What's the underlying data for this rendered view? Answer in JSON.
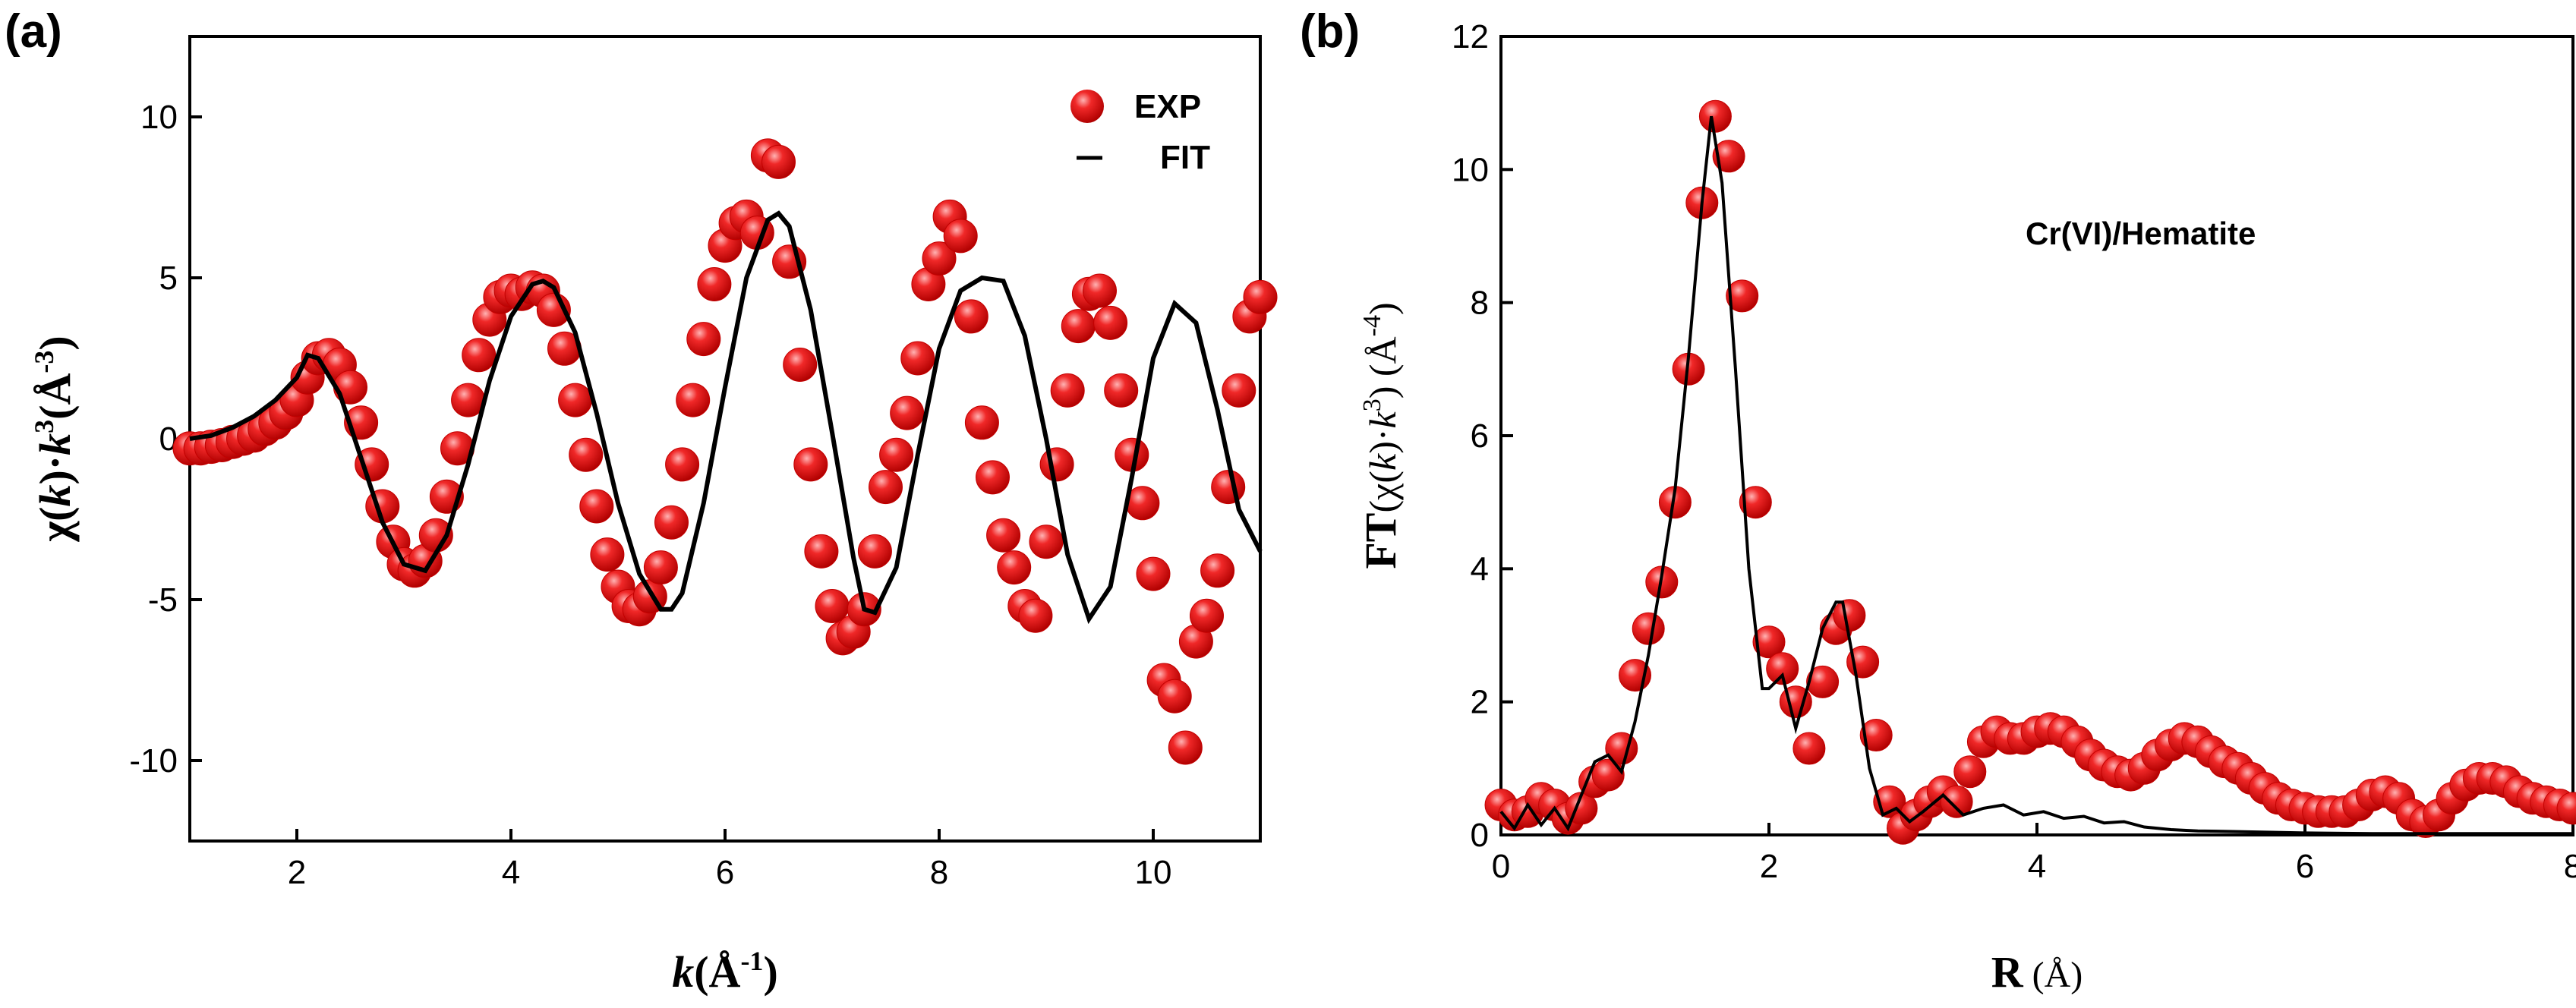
{
  "chart_data": [
    {
      "panel": "(a)",
      "type": "scatter",
      "xlabel_parts": [
        "k",
        "(Å",
        "-1",
        ")"
      ],
      "ylabel_parts": [
        "χ(",
        "k",
        ")·",
        "k",
        "3",
        "(Å",
        "-3",
        ")"
      ],
      "xlim": [
        1,
        11
      ],
      "ylim": [
        -12.5,
        12.5
      ],
      "xticks": [
        2,
        4,
        6,
        8,
        10
      ],
      "yticks": [
        -10,
        -5,
        0,
        5,
        10
      ],
      "legend": {
        "position": "top-right",
        "entries": [
          "EXP",
          "FIT"
        ]
      },
      "series": [
        {
          "name": "EXP",
          "kind": "markers",
          "color": "#e8141a",
          "x": [
            1.0,
            1.1,
            1.2,
            1.3,
            1.4,
            1.5,
            1.6,
            1.7,
            1.8,
            1.9,
            2.0,
            2.1,
            2.2,
            2.3,
            2.4,
            2.5,
            2.6,
            2.7,
            2.8,
            2.9,
            3.0,
            3.1,
            3.2,
            3.3,
            3.4,
            3.5,
            3.6,
            3.7,
            3.8,
            3.9,
            4.0,
            4.1,
            4.2,
            4.3,
            4.4,
            4.5,
            4.6,
            4.7,
            4.8,
            4.9,
            5.0,
            5.1,
            5.2,
            5.3,
            5.4,
            5.5,
            5.6,
            5.7,
            5.8,
            5.9,
            6.0,
            6.1,
            6.2,
            6.3,
            6.4,
            6.5,
            6.6,
            6.7,
            6.8,
            6.9,
            7.0,
            7.1,
            7.2,
            7.3,
            7.4,
            7.5,
            7.6,
            7.7,
            7.8,
            7.9,
            8.0,
            8.1,
            8.2,
            8.3,
            8.4,
            8.5,
            8.6,
            8.7,
            8.8,
            8.9,
            9.0,
            9.1,
            9.2,
            9.3,
            9.4,
            9.5,
            9.6,
            9.7,
            9.8,
            9.9,
            10.0,
            10.1,
            10.2,
            10.3,
            10.4,
            10.5,
            10.6,
            10.7,
            10.8,
            10.9,
            11.0
          ],
          "y": [
            -0.3,
            -0.3,
            -0.25,
            -0.2,
            -0.1,
            0.0,
            0.1,
            0.3,
            0.5,
            0.8,
            1.2,
            1.9,
            2.5,
            2.6,
            2.3,
            1.6,
            0.5,
            -0.8,
            -2.1,
            -3.2,
            -3.9,
            -4.1,
            -3.8,
            -3.0,
            -1.8,
            -0.3,
            1.2,
            2.6,
            3.7,
            4.4,
            4.6,
            4.5,
            4.7,
            4.6,
            4.0,
            2.8,
            1.2,
            -0.5,
            -2.1,
            -3.6,
            -4.6,
            -5.2,
            -5.3,
            -4.9,
            -4.0,
            -2.6,
            -0.8,
            1.2,
            3.1,
            4.8,
            6.0,
            6.7,
            6.9,
            6.4,
            8.8,
            8.6,
            5.5,
            2.3,
            -0.8,
            -3.5,
            -5.2,
            -6.2,
            -6.0,
            -5.3,
            -3.5,
            -1.5,
            -0.5,
            0.8,
            2.5,
            4.8,
            5.6,
            6.9,
            6.3,
            3.8,
            0.5,
            -1.2,
            -3.0,
            -4.0,
            -5.2,
            -5.5,
            -3.2,
            -0.8,
            1.5,
            3.5,
            4.5,
            4.6,
            3.6,
            1.5,
            -0.5,
            -2.0,
            -4.2,
            -7.5,
            -8.0,
            -9.6,
            -6.3,
            -5.5,
            -4.1,
            -1.5,
            1.5,
            3.8,
            4.4
          ]
        },
        {
          "name": "FIT",
          "kind": "line",
          "color": "#000000",
          "x": [
            1.0,
            1.2,
            1.4,
            1.6,
            1.8,
            2.0,
            2.1,
            2.2,
            2.4,
            2.6,
            2.8,
            3.0,
            3.2,
            3.4,
            3.6,
            3.8,
            4.0,
            4.2,
            4.3,
            4.4,
            4.6,
            4.8,
            5.0,
            5.2,
            5.4,
            5.5,
            5.6,
            5.8,
            6.0,
            6.2,
            6.4,
            6.5,
            6.6,
            6.8,
            7.0,
            7.2,
            7.3,
            7.4,
            7.6,
            7.8,
            8.0,
            8.2,
            8.4,
            8.6,
            8.8,
            9.0,
            9.2,
            9.4,
            9.6,
            9.8,
            10.0,
            10.2,
            10.4,
            10.6,
            10.8,
            11.0
          ],
          "y": [
            0.0,
            0.1,
            0.35,
            0.7,
            1.2,
            1.9,
            2.6,
            2.5,
            1.4,
            -0.6,
            -2.6,
            -3.9,
            -4.1,
            -3.0,
            -0.8,
            1.8,
            3.8,
            4.8,
            4.9,
            4.7,
            3.3,
            0.8,
            -2.0,
            -4.2,
            -5.3,
            -5.3,
            -4.8,
            -2.0,
            1.6,
            5.0,
            6.8,
            7.0,
            6.6,
            4.0,
            0.2,
            -3.7,
            -5.3,
            -5.4,
            -4.0,
            -0.5,
            2.8,
            4.6,
            5.0,
            4.9,
            3.2,
            0.0,
            -3.6,
            -5.6,
            -4.6,
            -1.2,
            2.5,
            4.2,
            3.6,
            0.9,
            -2.2,
            -3.5
          ]
        }
      ]
    },
    {
      "panel": "(b)",
      "type": "scatter",
      "title": "Cr(VI)/Hematite",
      "xlabel_parts": [
        "R",
        " (Å)"
      ],
      "ylabel_parts": [
        "FT",
        "(χ(",
        "k",
        ")·",
        "k",
        "3",
        ") (Å",
        "-4",
        ")"
      ],
      "xlim": [
        0,
        8
      ],
      "ylim": [
        0,
        12
      ],
      "xticks": [
        0,
        2,
        4,
        6,
        8
      ],
      "yticks": [
        0,
        2,
        4,
        6,
        8,
        10,
        12
      ],
      "series": [
        {
          "name": "EXP",
          "kind": "markers",
          "color": "#e8141a",
          "x": [
            0.0,
            0.1,
            0.2,
            0.3,
            0.4,
            0.5,
            0.6,
            0.7,
            0.8,
            0.9,
            1.0,
            1.1,
            1.2,
            1.3,
            1.4,
            1.5,
            1.6,
            1.7,
            1.8,
            1.9,
            2.0,
            2.1,
            2.2,
            2.3,
            2.4,
            2.5,
            2.6,
            2.7,
            2.8,
            2.9,
            3.0,
            3.1,
            3.2,
            3.3,
            3.4,
            3.5,
            3.6,
            3.7,
            3.8,
            3.9,
            4.0,
            4.1,
            4.2,
            4.3,
            4.4,
            4.5,
            4.6,
            4.7,
            4.8,
            4.9,
            5.0,
            5.1,
            5.2,
            5.3,
            5.4,
            5.5,
            5.6,
            5.7,
            5.8,
            5.9,
            6.0,
            6.1,
            6.2,
            6.3,
            6.4,
            6.5,
            6.6,
            6.7,
            6.8,
            6.9,
            7.0,
            7.1,
            7.2,
            7.3,
            7.4,
            7.5,
            7.6,
            7.7,
            7.8,
            7.9,
            8.0
          ],
          "y": [
            0.45,
            0.3,
            0.35,
            0.55,
            0.45,
            0.25,
            0.4,
            0.8,
            0.9,
            1.3,
            2.4,
            3.1,
            3.8,
            5.0,
            7.0,
            9.5,
            10.8,
            10.2,
            8.1,
            5.0,
            2.9,
            2.5,
            2.0,
            1.3,
            2.3,
            3.1,
            3.3,
            2.6,
            1.5,
            0.5,
            0.1,
            0.3,
            0.5,
            0.65,
            0.5,
            0.95,
            1.4,
            1.55,
            1.45,
            1.45,
            1.55,
            1.6,
            1.55,
            1.4,
            1.2,
            1.05,
            0.95,
            0.9,
            1.0,
            1.2,
            1.35,
            1.45,
            1.4,
            1.25,
            1.1,
            1.0,
            0.85,
            0.7,
            0.55,
            0.45,
            0.4,
            0.35,
            0.35,
            0.35,
            0.45,
            0.6,
            0.65,
            0.55,
            0.3,
            0.2,
            0.3,
            0.55,
            0.75,
            0.85,
            0.85,
            0.8,
            0.65,
            0.55,
            0.5,
            0.45,
            0.4
          ]
        },
        {
          "name": "FIT",
          "kind": "line",
          "color": "#000000",
          "x": [
            0.0,
            0.1,
            0.2,
            0.3,
            0.4,
            0.5,
            0.6,
            0.7,
            0.8,
            0.9,
            1.0,
            1.1,
            1.2,
            1.3,
            1.4,
            1.5,
            1.57,
            1.65,
            1.75,
            1.85,
            1.95,
            2.0,
            2.1,
            2.2,
            2.3,
            2.4,
            2.5,
            2.55,
            2.65,
            2.75,
            2.85,
            2.95,
            3.05,
            3.15,
            3.3,
            3.45,
            3.6,
            3.75,
            3.9,
            4.05,
            4.2,
            4.35,
            4.5,
            4.65,
            4.8,
            5.0,
            5.2,
            5.5,
            6.0,
            6.5,
            7.0,
            8.0
          ],
          "y": [
            0.35,
            0.1,
            0.45,
            0.15,
            0.4,
            0.1,
            0.6,
            1.1,
            1.2,
            0.95,
            1.7,
            2.7,
            3.9,
            5.2,
            7.2,
            9.5,
            10.8,
            9.8,
            7.0,
            4.0,
            2.2,
            2.2,
            2.4,
            1.6,
            2.3,
            3.1,
            3.5,
            3.5,
            2.4,
            1.0,
            0.3,
            0.4,
            0.2,
            0.35,
            0.6,
            0.3,
            0.4,
            0.45,
            0.3,
            0.35,
            0.25,
            0.28,
            0.18,
            0.2,
            0.12,
            0.08,
            0.06,
            0.05,
            0.03,
            0.02,
            0.02,
            0.02
          ]
        }
      ]
    }
  ]
}
